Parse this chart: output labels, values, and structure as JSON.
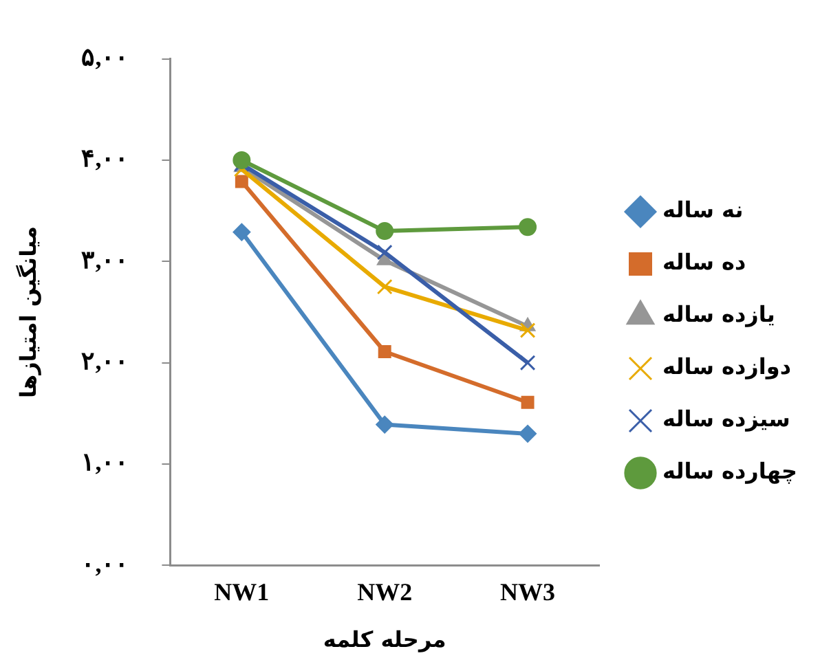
{
  "chart_data": {
    "type": "line",
    "xlabel": "مرحله کلمه",
    "ylabel": "میانگین امتیازها",
    "categories": [
      "NW1",
      "NW2",
      "NW3"
    ],
    "ylim": [
      0,
      5
    ],
    "yticks": [
      {
        "value": 0,
        "label": "۰,۰۰"
      },
      {
        "value": 1,
        "label": "۱,۰۰"
      },
      {
        "value": 2,
        "label": "۲,۰۰"
      },
      {
        "value": 3,
        "label": "۳,۰۰"
      },
      {
        "value": 4,
        "label": "۴,۰۰"
      },
      {
        "value": 5,
        "label": "۵,۰۰"
      }
    ],
    "grid": false,
    "legend": "right",
    "line_style": "solid",
    "series": [
      {
        "name": "نه ساله",
        "color": "#4a86be",
        "marker": "diamond",
        "values": [
          3.29,
          1.39,
          1.3
        ]
      },
      {
        "name": "ده ساله",
        "color": "#d46c2b",
        "marker": "square",
        "values": [
          3.79,
          2.11,
          1.61
        ]
      },
      {
        "name": "یازده ساله",
        "color": "#969696",
        "marker": "triangle",
        "values": [
          3.93,
          3.01,
          2.36
        ]
      },
      {
        "name": "دوازده ساله",
        "color": "#e8aa00",
        "marker": "cross",
        "values": [
          3.91,
          2.75,
          2.32
        ]
      },
      {
        "name": "سیزده ساله",
        "color": "#3a5ea8",
        "marker": "cross",
        "values": [
          3.96,
          3.09,
          2.0
        ]
      },
      {
        "name": "چهارده ساله",
        "color": "#5e9a3d",
        "marker": "circle",
        "values": [
          4.0,
          3.3,
          3.34
        ]
      }
    ]
  }
}
